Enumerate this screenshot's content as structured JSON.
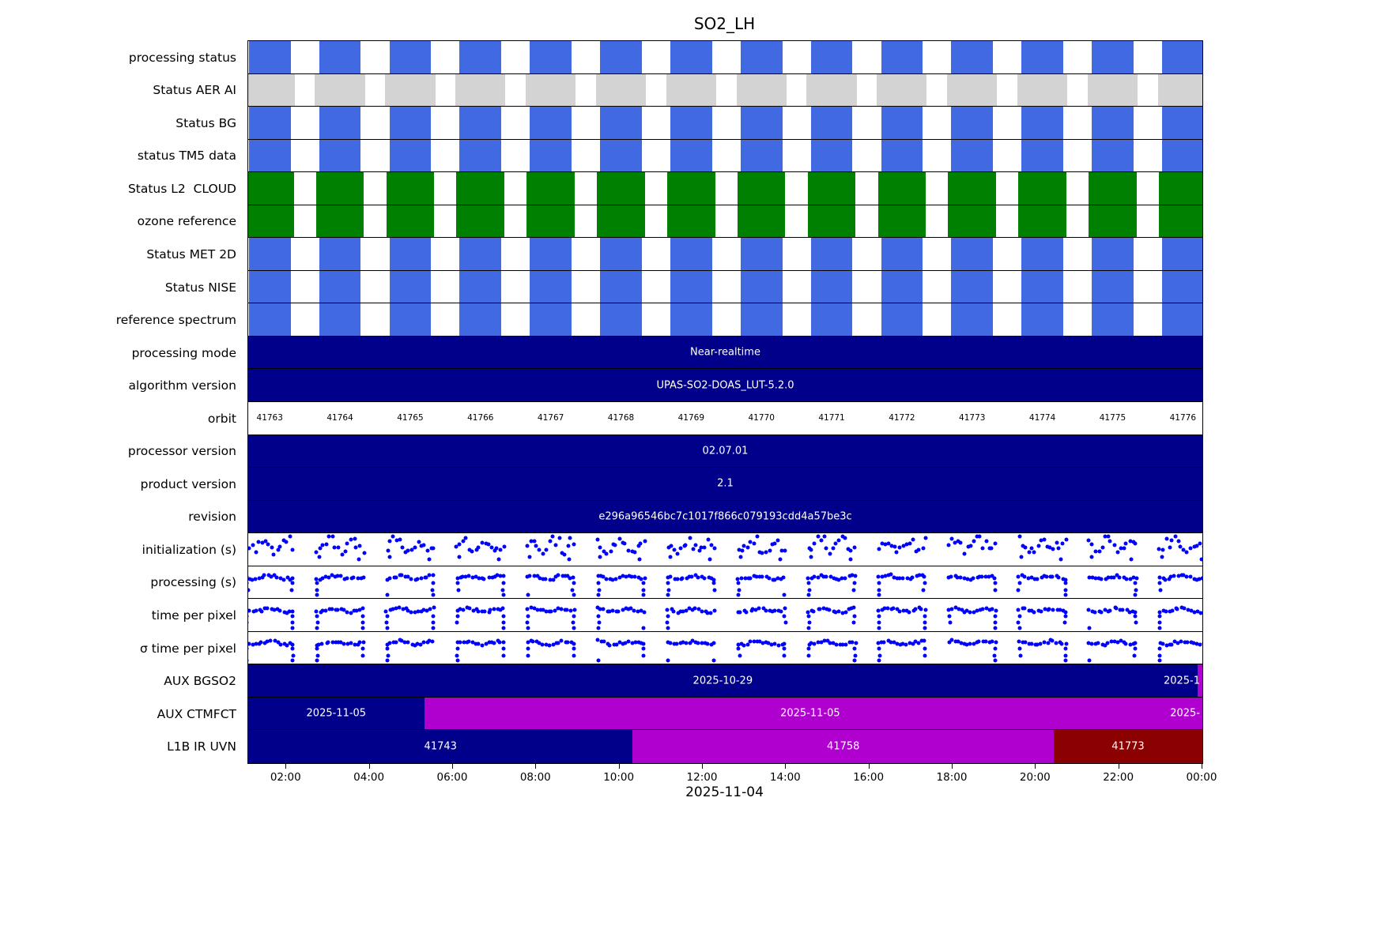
{
  "title": "SO2_LH",
  "x_axis": {
    "label": "2025-11-04",
    "ticks": [
      "02:00",
      "04:00",
      "06:00",
      "08:00",
      "10:00",
      "12:00",
      "14:00",
      "16:00",
      "18:00",
      "20:00",
      "22:00",
      "00:00"
    ],
    "tick_hours": [
      2,
      4,
      6,
      8,
      10,
      12,
      14,
      16,
      18,
      20,
      22,
      24
    ]
  },
  "colors": {
    "status_blue": "#4169e1",
    "status_gray": "#d3d3d3",
    "status_green": "#008000",
    "bar_navy": "#00008b",
    "bar_magenta": "#b000d0",
    "bar_darkred": "#8b0000",
    "dot_blue": "#0000ff",
    "axis_black": "#000000"
  },
  "chart_data": {
    "type": "status-timeline",
    "title": "SO2_LH",
    "xlabel": "2025-11-04",
    "axis": {
      "start_hour": 1.083,
      "end_hour": 24.0
    },
    "orbit_axis": {
      "first_center_hour": 1.6,
      "spacing_hours": 1.687,
      "count": 14
    },
    "rows": [
      {
        "label": "processing status",
        "kind": "blocks",
        "color_key": "status_blue",
        "block_width_hours": 1.0
      },
      {
        "label": "Status AER AI",
        "kind": "blocks",
        "color_key": "status_gray",
        "block_width_hours": 1.2
      },
      {
        "label": "Status BG",
        "kind": "blocks",
        "color_key": "status_blue",
        "block_width_hours": 1.0
      },
      {
        "label": "status TM5 data",
        "kind": "blocks",
        "color_key": "status_blue",
        "block_width_hours": 1.0
      },
      {
        "label": "Status L2  CLOUD",
        "kind": "blocks",
        "color_key": "status_green",
        "block_width_hours": 1.15
      },
      {
        "label": "ozone reference",
        "kind": "blocks",
        "color_key": "status_green",
        "block_width_hours": 1.15
      },
      {
        "label": "Status MET 2D",
        "kind": "blocks",
        "color_key": "status_blue",
        "block_width_hours": 1.0
      },
      {
        "label": "Status NISE",
        "kind": "blocks",
        "color_key": "status_blue",
        "block_width_hours": 1.0
      },
      {
        "label": "reference spectrum",
        "kind": "blocks",
        "color_key": "status_blue",
        "block_width_hours": 1.0
      },
      {
        "label": "processing mode",
        "kind": "bar",
        "segments": [
          {
            "text": "Near-realtime",
            "color_key": "bar_navy",
            "start_hour": 1.083,
            "end_hour": 24.0
          }
        ]
      },
      {
        "label": "algorithm version",
        "kind": "bar",
        "segments": [
          {
            "text": "UPAS-SO2-DOAS_LUT-5.2.0",
            "color_key": "bar_navy",
            "start_hour": 1.083,
            "end_hour": 24.0
          }
        ]
      },
      {
        "label": "orbit",
        "kind": "orbits",
        "orbits": [
          41763,
          41764,
          41765,
          41766,
          41767,
          41768,
          41769,
          41770,
          41771,
          41772,
          41773,
          41774,
          41775,
          41776
        ]
      },
      {
        "label": "processor version",
        "kind": "bar",
        "segments": [
          {
            "text": "02.07.01",
            "color_key": "bar_navy",
            "start_hour": 1.083,
            "end_hour": 24.0
          }
        ]
      },
      {
        "label": "product version",
        "kind": "bar",
        "segments": [
          {
            "text": "2.1",
            "color_key": "bar_navy",
            "start_hour": 1.083,
            "end_hour": 24.0
          }
        ]
      },
      {
        "label": "revision",
        "kind": "bar",
        "segments": [
          {
            "text": "e296a96546bc7c1017f866c079193cdd4a57be3c",
            "color_key": "bar_navy",
            "start_hour": 1.083,
            "end_hour": 24.0
          }
        ]
      },
      {
        "label": "initialization (s)",
        "kind": "scatter",
        "pattern": "spread"
      },
      {
        "label": "processing (s)",
        "kind": "scatter",
        "pattern": "band"
      },
      {
        "label": "time per pixel",
        "kind": "scatter",
        "pattern": "band"
      },
      {
        "label": "σ time per pixel",
        "kind": "scatter",
        "pattern": "band"
      },
      {
        "label": "AUX BGSO2",
        "kind": "bar",
        "segments": [
          {
            "text": "2025-10-29",
            "color_key": "bar_navy",
            "start_hour": 1.083,
            "end_hour": 23.88
          },
          {
            "text": "2025-1",
            "color_key": "bar_magenta",
            "start_hour": 23.88,
            "end_hour": 24.0,
            "edge": true
          }
        ]
      },
      {
        "label": "AUX CTMFCT",
        "kind": "bar",
        "segments": [
          {
            "text": "2025-11-05",
            "color_key": "bar_navy",
            "start_hour": 1.083,
            "end_hour": 5.31
          },
          {
            "text": "2025-11-05",
            "color_key": "bar_magenta",
            "start_hour": 5.31,
            "end_hour": 23.85
          },
          {
            "text": "2025-",
            "color_key": "bar_magenta",
            "start_hour": 23.85,
            "end_hour": 24.0,
            "edge": true
          }
        ]
      },
      {
        "label": "L1B IR UVN",
        "kind": "bar",
        "segments": [
          {
            "text": "41743",
            "color_key": "bar_navy",
            "start_hour": 1.083,
            "end_hour": 10.32
          },
          {
            "text": "41758",
            "color_key": "bar_magenta",
            "start_hour": 10.32,
            "end_hour": 20.43
          },
          {
            "text": "41773",
            "color_key": "bar_darkred",
            "start_hour": 20.43,
            "end_hour": 24.0
          }
        ]
      }
    ]
  }
}
